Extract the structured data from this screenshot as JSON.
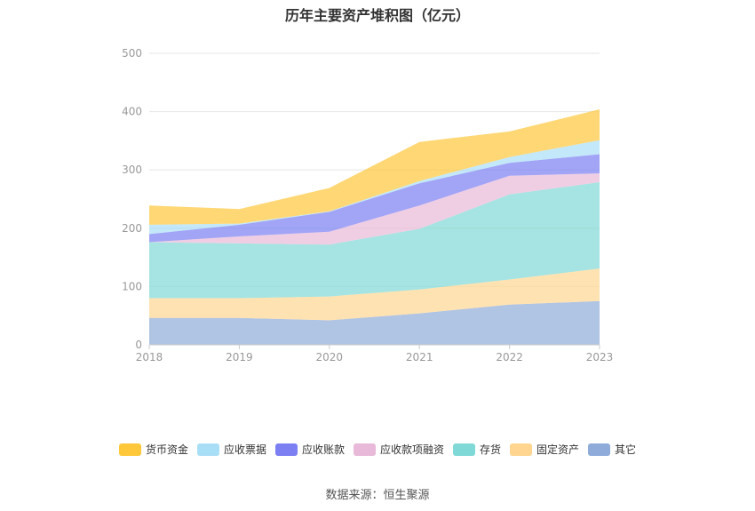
{
  "title": "历年主要资产堆积图（亿元）",
  "source_text": "数据来源：恒生聚源",
  "chart_data": {
    "type": "area",
    "stacked": true,
    "title": "历年主要资产堆积图（亿元）",
    "x": [
      "2018",
      "2019",
      "2020",
      "2021",
      "2022",
      "2023"
    ],
    "ylim": [
      0,
      500
    ],
    "yticks": [
      0,
      100,
      200,
      300,
      400,
      500
    ],
    "grid": true,
    "legend_position": "bottom",
    "series": [
      {
        "name": "其它",
        "color": "#8fabd9",
        "values": [
          46,
          46,
          42,
          54,
          69,
          75
        ]
      },
      {
        "name": "固定资产",
        "color": "#ffd590",
        "values": [
          34,
          34,
          41,
          41,
          43,
          56
        ]
      },
      {
        "name": "存货",
        "color": "#7fd9d6",
        "values": [
          96,
          94,
          89,
          104,
          146,
          148
        ]
      },
      {
        "name": "应收款项融资",
        "color": "#e8b9d9",
        "values": [
          0,
          12,
          22,
          40,
          32,
          15
        ]
      },
      {
        "name": "应收账款",
        "color": "#7b7ff2",
        "values": [
          14,
          20,
          34,
          38,
          22,
          33
        ]
      },
      {
        "name": "应收票据",
        "color": "#a9def7",
        "values": [
          16,
          2,
          1,
          4,
          10,
          24
        ]
      },
      {
        "name": "货币资金",
        "color": "#ffc73a",
        "values": [
          33,
          25,
          40,
          67,
          44,
          53
        ]
      }
    ],
    "legend_order": [
      "货币资金",
      "应收票据",
      "应收账款",
      "应收款项融资",
      "存货",
      "固定资产",
      "其它"
    ]
  }
}
